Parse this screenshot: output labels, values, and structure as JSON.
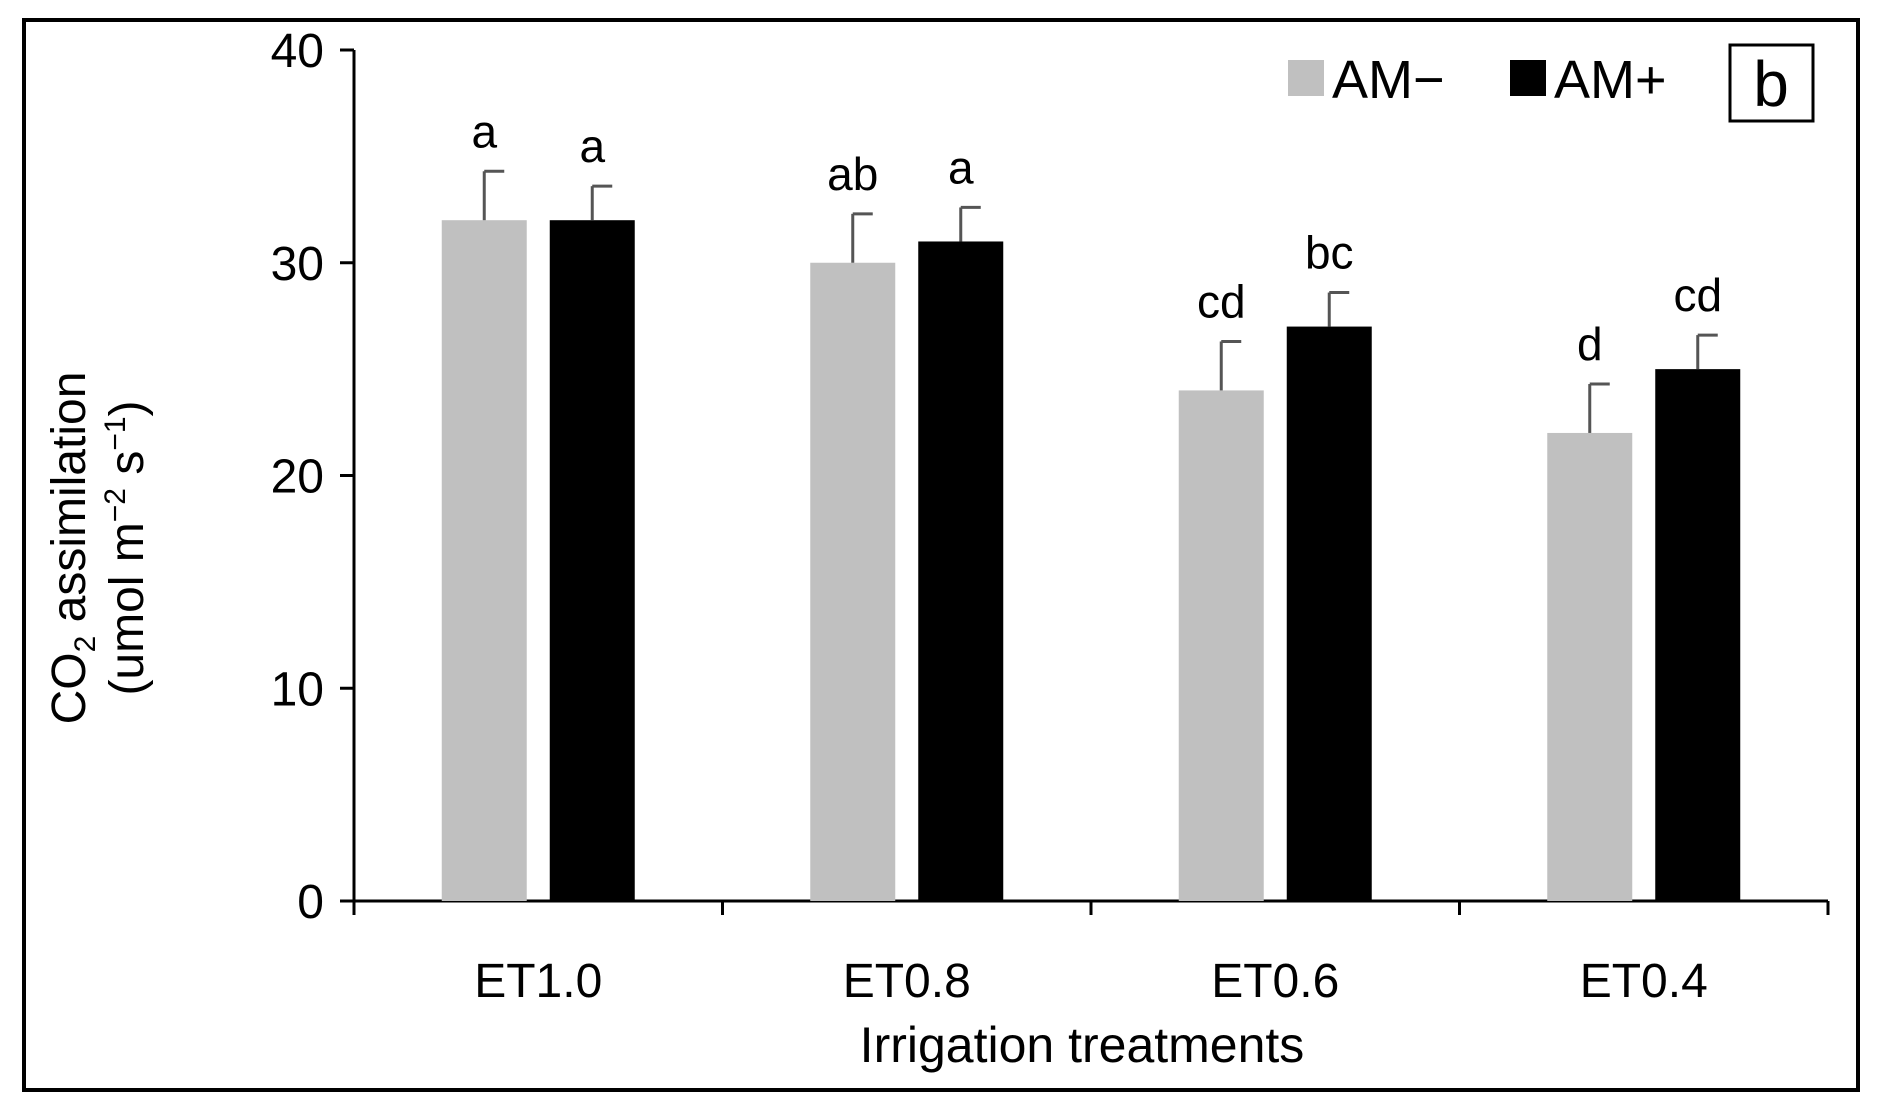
{
  "chart_data": {
    "type": "bar",
    "panel_label": "b",
    "categories": [
      "ET1.0",
      "ET0.8",
      "ET0.6",
      "ET0.4"
    ],
    "series": [
      {
        "name": "AM−",
        "color": "#c0c0c0",
        "values": [
          32,
          30,
          24,
          22
        ],
        "errors": [
          2.3,
          2.3,
          2.3,
          2.3
        ],
        "labels": [
          "a",
          "ab",
          "cd",
          "d"
        ]
      },
      {
        "name": "AM+",
        "color": "#000000",
        "values": [
          32,
          31,
          27,
          25
        ],
        "errors": [
          1.6,
          1.6,
          1.6,
          1.6
        ],
        "labels": [
          "a",
          "a",
          "bc",
          "cd"
        ]
      }
    ],
    "xlabel": "Irrigation treatments",
    "ylabel": {
      "line1_main": "CO",
      "line1_sub": "2",
      "line1_rest": " assimilation",
      "line2_a": "(umol m",
      "line2_sup1": "−2",
      "line2_b": " s",
      "line2_sup2": "−1",
      "line2_c": ")"
    },
    "ylim": [
      0,
      40
    ],
    "yticks": [
      0,
      10,
      20,
      30,
      40
    ],
    "grid": false,
    "legend_position": "top-right"
  }
}
